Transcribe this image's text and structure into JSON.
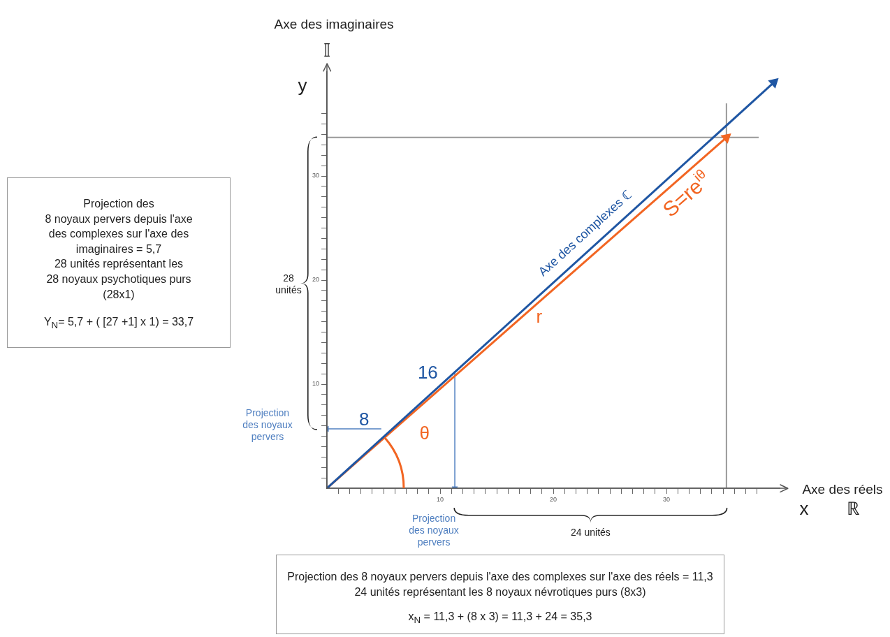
{
  "chart_data": {
    "type": "line",
    "xlabel": "Axe des réels",
    "ylabel": "Axe des imaginaires",
    "xlim": [
      0,
      40
    ],
    "ylim": [
      0,
      40
    ],
    "xticks": [
      {
        "value": 1,
        "label": null
      },
      {
        "value": 2,
        "label": null
      },
      {
        "value": 3,
        "label": null
      },
      {
        "value": 4,
        "label": null
      },
      {
        "value": 5,
        "label": null
      },
      {
        "value": 6,
        "label": null
      },
      {
        "value": 7,
        "label": null
      },
      {
        "value": 8,
        "label": null
      },
      {
        "value": 9,
        "label": null
      },
      10,
      {
        "value": 11,
        "label": null
      },
      {
        "value": 12,
        "label": null
      },
      {
        "value": 13,
        "label": null
      },
      {
        "value": 14,
        "label": null
      },
      {
        "value": 15,
        "label": null
      },
      {
        "value": 16,
        "label": null
      },
      {
        "value": 17,
        "label": null
      },
      {
        "value": 18,
        "label": null
      },
      {
        "value": 19,
        "label": null
      },
      20,
      {
        "value": 21,
        "label": null
      },
      {
        "value": 22,
        "label": null
      },
      {
        "value": 23,
        "label": null
      },
      {
        "value": 24,
        "label": null
      },
      {
        "value": 25,
        "label": null
      },
      {
        "value": 26,
        "label": null
      },
      {
        "value": 27,
        "label": null
      },
      {
        "value": 28,
        "label": null
      },
      {
        "value": 29,
        "label": null
      },
      30,
      {
        "value": 31,
        "label": null
      },
      {
        "value": 32,
        "label": null
      },
      {
        "value": 33,
        "label": null
      },
      {
        "value": 34,
        "label": null
      },
      {
        "value": 35,
        "label": null
      },
      {
        "value": 36,
        "label": null
      },
      {
        "value": 37,
        "label": null
      },
      {
        "value": 38,
        "label": null
      }
    ],
    "yticks": [
      {
        "value": 1,
        "label": null
      },
      {
        "value": 2,
        "label": null
      },
      {
        "value": 3,
        "label": null
      },
      {
        "value": 4,
        "label": null
      },
      {
        "value": 5,
        "label": null
      },
      {
        "value": 6,
        "label": null
      },
      {
        "value": 7,
        "label": null
      },
      {
        "value": 8,
        "label": null
      },
      {
        "value": 9,
        "label": null
      },
      10,
      {
        "value": 11,
        "label": null
      },
      {
        "value": 12,
        "label": null
      },
      {
        "value": 13,
        "label": null
      },
      {
        "value": 14,
        "label": null
      },
      {
        "value": 15,
        "label": null
      },
      {
        "value": 16,
        "label": null
      },
      {
        "value": 17,
        "label": null
      },
      {
        "value": 18,
        "label": null
      },
      {
        "value": 19,
        "label": null
      },
      20,
      {
        "value": 21,
        "label": null
      },
      {
        "value": 22,
        "label": null
      },
      {
        "value": 23,
        "label": null
      },
      {
        "value": 24,
        "label": null
      },
      {
        "value": 25,
        "label": null
      },
      {
        "value": 26,
        "label": null
      },
      {
        "value": 27,
        "label": null
      },
      {
        "value": 28,
        "label": null
      },
      {
        "value": 29,
        "label": null
      },
      30,
      {
        "value": 31,
        "label": null
      },
      {
        "value": 32,
        "label": null
      },
      {
        "value": 33,
        "label": null
      },
      {
        "value": 34,
        "label": null
      },
      {
        "value": 35,
        "label": null
      },
      {
        "value": 36,
        "label": null
      }
    ],
    "series": [
      {
        "color": "#1f56a3",
        "x": [
          0,
          39.5
        ],
        "values": [
          0,
          39
        ]
      },
      {
        "color": "#f26522",
        "x": [
          0,
          35.3
        ],
        "values": [
          0,
          33.7
        ]
      },
      {
        "color": "#4f7fc0",
        "x": [
          4.8,
          0
        ],
        "values": [
          5.7,
          5.7
        ]
      },
      {
        "color": "#4f7fc0",
        "x": [
          11.3,
          11.3
        ],
        "values": [
          11.2,
          0
        ]
      }
    ],
    "ref_lines": [
      {
        "axis": "y",
        "value": 33.7,
        "color": "#999999"
      },
      {
        "axis": "x",
        "value": 35.3,
        "color": "#999999"
      }
    ],
    "grid": false,
    "legend": false,
    "line_style": "solid",
    "annotations": [
      "Projection des\n8 noyaux pervers depuis l'axe\ndes complexes sur l'axe des\nimaginaires = 5,7\n28 unités représentant les\n28 noyaux psychotiques purs\n(28x1)",
      "Y$_{N}$= 5,7 + ( [27 +1] x 1) = 33,7",
      "Projection des 8 noyaux pervers depuis l'axe des complexes sur l'axe des réels = 11,3\n24 unités représentant les 8 noyaux névrotiques purs (8x3)",
      "x$_{N}$ = 11,3 + (8 x 3) = 11,3 + 24 = 35,3",
      "28\nunités",
      "24 unités",
      "Projection\ndes noyaux\npervers",
      "Projection\ndes noyaux\npervers",
      "𝕀",
      "y",
      "ℝ",
      "x",
      "8",
      "16",
      "Axe des complexes ℂ",
      "θ",
      "r",
      "S=re$^{iθ}$"
    ]
  }
}
